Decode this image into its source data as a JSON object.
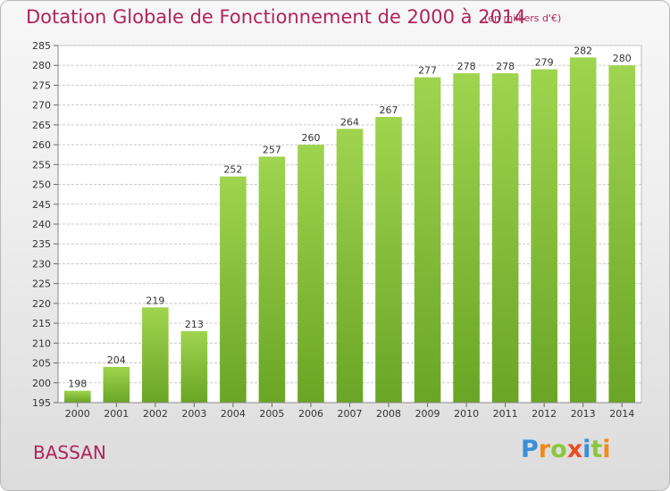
{
  "title": "Dotation Globale de Fonctionnement de 2000 à 2014",
  "subtitle": "(en milliers d'€)",
  "commune": "BASSAN",
  "logo_text": "Proxiti",
  "colors": {
    "title": "#b0245a",
    "bar_light": "#9fd44f",
    "bar_dark": "#6aa525",
    "grid": "#c8c8c8"
  },
  "chart_data": {
    "type": "bar",
    "title": "Dotation Globale de Fonctionnement de 2000 à 2014",
    "subtitle": "(en milliers d'€)",
    "xlabel": "",
    "ylabel": "",
    "categories": [
      "2000",
      "2001",
      "2002",
      "2003",
      "2004",
      "2005",
      "2006",
      "2007",
      "2008",
      "2009",
      "2010",
      "2011",
      "2012",
      "2013",
      "2014"
    ],
    "values": [
      198,
      204,
      219,
      213,
      252,
      257,
      260,
      264,
      267,
      277,
      278,
      278,
      279,
      282,
      280
    ],
    "ylim": [
      195,
      285
    ],
    "ytick_step": 5,
    "grid": true,
    "value_labels": true
  }
}
